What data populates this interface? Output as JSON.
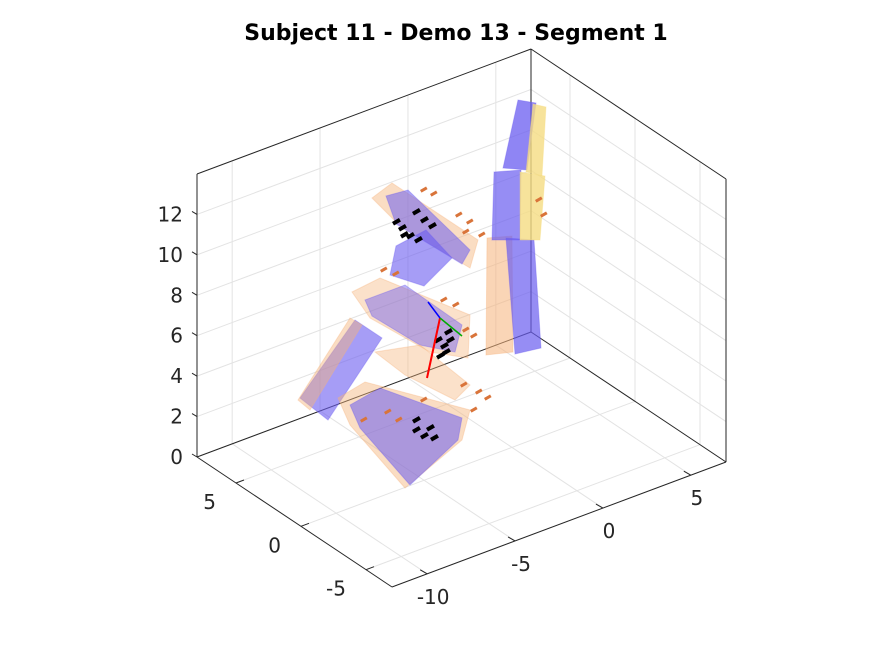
{
  "chart_data": {
    "type": "scatter",
    "title": "Subject 11 - Demo 13 - Segment 1",
    "xlabel": "",
    "ylabel": "",
    "zlabel": "",
    "view": "3d",
    "grid": true,
    "x_axis": {
      "ticks": [
        -10,
        -5,
        0,
        5
      ],
      "tick_labels": [
        "-10",
        "-5",
        "0",
        "5"
      ],
      "lim": [
        -12,
        7
      ]
    },
    "y_axis": {
      "ticks": [
        -5,
        0,
        5
      ],
      "tick_labels": [
        "-5",
        "0",
        "5"
      ],
      "lim": [
        -7,
        8
      ]
    },
    "z_axis": {
      "ticks": [
        0,
        2,
        4,
        6,
        8,
        10,
        12
      ],
      "tick_labels": [
        "0",
        "2",
        "4",
        "6",
        "8",
        "10",
        "12"
      ],
      "lim": [
        0,
        14
      ]
    },
    "colors": {
      "body_blue": "#6a5cf0",
      "body_orange": "#f5b37a",
      "body_yellow": "#f5dc82",
      "marker_black": "#000000",
      "marker_orange": "#d9743a",
      "axis_red": "#ff0000",
      "axis_green": "#00aa00",
      "axis_blue": "#0000ff"
    }
  }
}
